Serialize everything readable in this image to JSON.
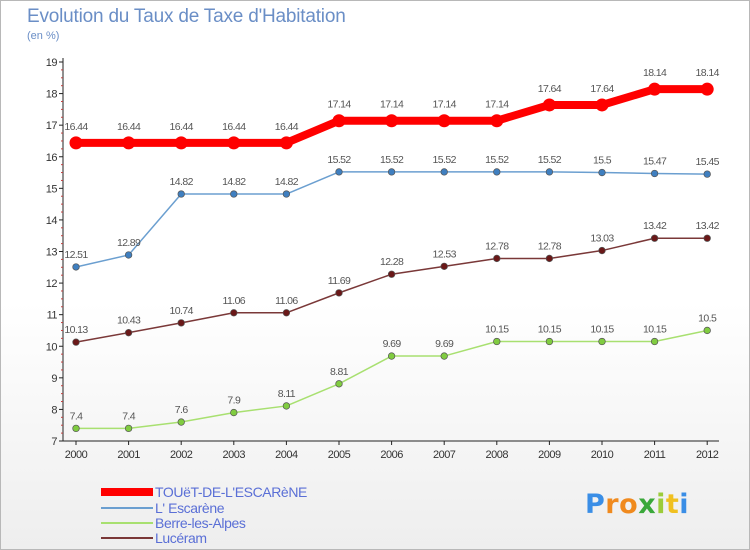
{
  "title": "Evolution du Taux de Taxe d'Habitation",
  "subtitle": "(en %)",
  "logo": {
    "letters": [
      "P",
      "r",
      "o",
      "x",
      "i",
      "t",
      "i"
    ],
    "colors": [
      "#3a8ee6",
      "#f08a1e",
      "#f08a1e",
      "#3aa83a",
      "#9ccc3a",
      "#f0c020",
      "#3a8ee6"
    ]
  },
  "chart_data": {
    "type": "line",
    "title": "Evolution du Taux de Taxe d'Habitation",
    "ylabel": "(en %)",
    "xlabel": "",
    "x": [
      "2000",
      "2001",
      "2002",
      "2003",
      "2004",
      "2005",
      "2006",
      "2007",
      "2008",
      "2009",
      "2010",
      "2011",
      "2012"
    ],
    "ylim": [
      7,
      19
    ],
    "yticks": [
      7,
      8,
      9,
      10,
      11,
      12,
      13,
      14,
      15,
      16,
      17,
      18,
      19
    ],
    "grid": false,
    "legend": "bottom-left",
    "series": [
      {
        "name": "TOUëT-DE-L'ESCARèNE",
        "color": "#ff0000",
        "width": 8,
        "marker": "#ff0000",
        "values": [
          16.44,
          16.44,
          16.44,
          16.44,
          16.44,
          17.14,
          17.14,
          17.14,
          17.14,
          17.64,
          17.64,
          18.14,
          18.14
        ],
        "labels": [
          "16.44",
          "16.44",
          "16.44",
          "16.44",
          "16.44",
          "17.14",
          "17.14",
          "17.14",
          "17.14",
          "17.64",
          "17.64",
          "18.14",
          "18.14"
        ]
      },
      {
        "name": "L' Escarène",
        "color": "#6b9fd0",
        "width": 1.5,
        "marker": "#3f7fc0",
        "values": [
          12.51,
          12.89,
          14.82,
          14.82,
          14.82,
          15.52,
          15.52,
          15.52,
          15.52,
          15.52,
          15.5,
          15.47,
          15.45
        ],
        "labels": [
          "12.51",
          "12.89",
          "14.82",
          "14.82",
          "14.82",
          "15.52",
          "15.52",
          "15.52",
          "15.52",
          "15.52",
          "15.5",
          "15.47",
          "15.45"
        ]
      },
      {
        "name": "Berre-les-Alpes",
        "color": "#a8e070",
        "width": 1.5,
        "marker": "#80cc40",
        "values": [
          7.4,
          7.4,
          7.6,
          7.9,
          8.11,
          8.81,
          9.69,
          9.69,
          10.15,
          10.15,
          10.15,
          10.15,
          10.5
        ],
        "labels": [
          "7.4",
          "7.4",
          "7.6",
          "7.9",
          "8.11",
          "8.81",
          "9.69",
          "9.69",
          "10.15",
          "10.15",
          "10.15",
          "10.15",
          "10.5"
        ]
      },
      {
        "name": "Lucéram",
        "color": "#7a3838",
        "width": 1.5,
        "marker": "#6a1818",
        "values": [
          10.13,
          10.43,
          10.74,
          11.06,
          11.06,
          11.69,
          12.28,
          12.53,
          12.78,
          12.78,
          13.03,
          13.42,
          13.42
        ],
        "labels": [
          "10.13",
          "10.43",
          "10.74",
          "11.06",
          "11.06",
          "11.69",
          "12.28",
          "12.53",
          "12.78",
          "12.78",
          "13.03",
          "13.42",
          "13.42"
        ]
      }
    ]
  }
}
